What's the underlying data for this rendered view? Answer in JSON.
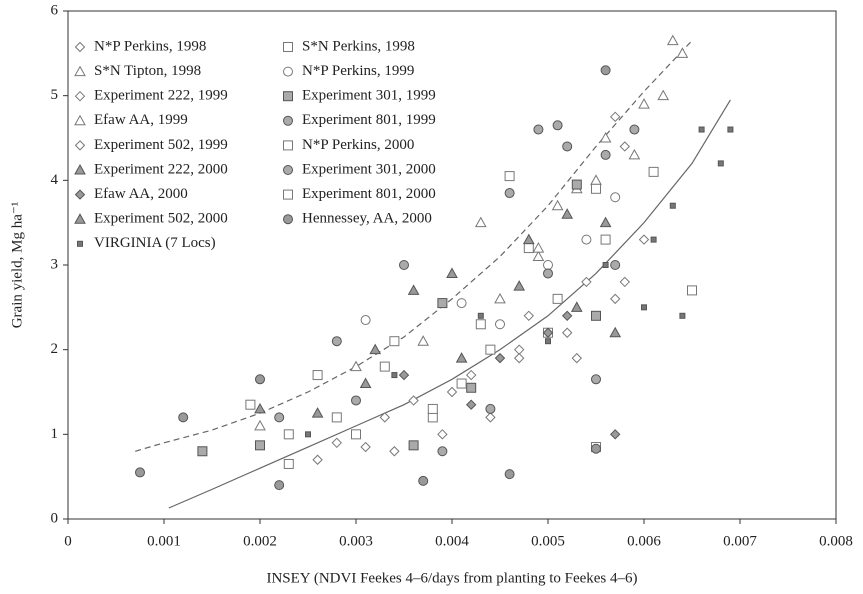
{
  "chart_data": {
    "type": "scatter",
    "x_label": "INSEY (NDVI Feekes 4–6/days from planting to Feekes 4–6)",
    "y_label": "Grain yield, Mg ha⁻¹",
    "xlim": [
      0,
      0.008
    ],
    "ylim": [
      0,
      6
    ],
    "xticks": [
      0,
      0.001,
      0.002,
      0.003,
      0.004,
      0.005,
      0.006,
      0.007,
      0.008
    ],
    "yticks": [
      0,
      1,
      2,
      3,
      4,
      5,
      6
    ],
    "legend": "upper left",
    "series": [
      {
        "name": "N*P Perkins, 1998",
        "marker": "diamond",
        "color": "#ffffff",
        "x": [
          0.0026,
          0.0031,
          0.0036,
          0.0042,
          0.0047,
          0.0052,
          0.0057,
          0.006
        ],
        "values": [
          0.7,
          0.85,
          1.4,
          1.7,
          2.0,
          2.2,
          2.6,
          3.3
        ]
      },
      {
        "name": "S*N Perkins, 1998",
        "marker": "square",
        "color": "#ffffff",
        "x": [
          0.0019,
          0.0023,
          0.0028,
          0.0033,
          0.0038,
          0.0044,
          0.005,
          0.0056
        ],
        "values": [
          1.35,
          1.0,
          1.2,
          1.8,
          1.2,
          2.0,
          2.2,
          3.3
        ]
      },
      {
        "name": "S*N Tipton, 1998",
        "marker": "triangle",
        "color": "#ffffff",
        "x": [
          0.0043,
          0.0049,
          0.0053,
          0.0056,
          0.006,
          0.0063,
          0.0064,
          0.0062
        ],
        "values": [
          3.5,
          3.1,
          3.9,
          4.5,
          4.9,
          5.65,
          5.5,
          5.0
        ]
      },
      {
        "name": "N*P Perkins, 1999",
        "marker": "circle",
        "color": "#ffffff",
        "x": [
          0.0031,
          0.0041,
          0.0045,
          0.005,
          0.0054,
          0.0057
        ],
        "values": [
          2.35,
          2.55,
          2.3,
          3.0,
          3.3,
          3.8
        ]
      },
      {
        "name": "Experiment 222, 1999",
        "marker": "diamond",
        "color": "#ffffff",
        "x": [
          0.0028,
          0.0034,
          0.004,
          0.0044,
          0.0048,
          0.0053,
          0.0058
        ],
        "values": [
          0.9,
          0.8,
          1.5,
          1.2,
          2.4,
          1.9,
          2.8
        ]
      },
      {
        "name": "Experiment 301, 1999",
        "marker": "square",
        "color": "#aaaaaa",
        "x": [
          0.0014,
          0.002,
          0.0036,
          0.0039,
          0.0042,
          0.0053,
          0.0055
        ],
        "values": [
          0.8,
          0.87,
          0.87,
          2.55,
          1.55,
          3.95,
          2.4
        ]
      },
      {
        "name": "Efaw AA, 1999",
        "marker": "triangle",
        "color": "#ffffff",
        "x": [
          0.002,
          0.003,
          0.0037,
          0.0045,
          0.0049,
          0.0051,
          0.0055,
          0.0059
        ],
        "values": [
          1.1,
          1.8,
          2.1,
          2.6,
          3.2,
          3.7,
          4.0,
          4.3
        ]
      },
      {
        "name": "Experiment 801, 1999",
        "marker": "circle",
        "color": "#aaaaaa",
        "x": [
          0.0028,
          0.0035,
          0.0046,
          0.0049,
          0.0051,
          0.0052,
          0.0056,
          0.0059
        ],
        "values": [
          2.1,
          3.0,
          3.85,
          4.6,
          4.65,
          4.4,
          4.3,
          4.6
        ]
      },
      {
        "name": "Experiment 502, 1999",
        "marker": "diamond",
        "color": "#ffffff",
        "x": [
          0.0033,
          0.0039,
          0.0047,
          0.0054,
          0.0057,
          0.0058
        ],
        "values": [
          1.2,
          1.0,
          1.9,
          2.8,
          4.75,
          4.4
        ]
      },
      {
        "name": "N*P Perkins, 2000",
        "marker": "square",
        "color": "#ffffff",
        "x": [
          0.0026,
          0.0034,
          0.0041,
          0.0046,
          0.0048,
          0.0055,
          0.0061
        ],
        "values": [
          1.7,
          2.1,
          1.6,
          4.05,
          3.2,
          3.9,
          4.1
        ]
      },
      {
        "name": "Experiment 222, 2000",
        "marker": "triangle",
        "color": "#999999",
        "x": [
          0.002,
          0.0032,
          0.0036,
          0.0041,
          0.0048,
          0.0053,
          0.0057
        ],
        "values": [
          1.3,
          2.0,
          2.7,
          1.9,
          3.3,
          2.5,
          2.2
        ]
      },
      {
        "name": "Experiment 301, 2000",
        "marker": "circle",
        "color": "#aaaaaa",
        "x": [
          0.0022,
          0.003,
          0.0039,
          0.0044,
          0.005,
          0.0055,
          0.0057
        ],
        "values": [
          1.2,
          1.4,
          0.8,
          1.3,
          2.9,
          1.65,
          3.0
        ]
      },
      {
        "name": "Efaw AA, 2000",
        "marker": "diamond",
        "color": "#999999",
        "x": [
          0.0035,
          0.0042,
          0.0045,
          0.005,
          0.0052,
          0.0057
        ],
        "values": [
          1.7,
          1.35,
          1.9,
          2.2,
          2.4,
          1.0
        ]
      },
      {
        "name": "Experiment 801, 2000",
        "marker": "square",
        "color": "#ffffff",
        "x": [
          0.0023,
          0.003,
          0.0038,
          0.0043,
          0.0051,
          0.0055,
          0.0065
        ],
        "values": [
          0.65,
          1.0,
          1.3,
          2.3,
          2.6,
          0.85,
          2.7
        ]
      },
      {
        "name": "Experiment 502, 2000",
        "marker": "triangle",
        "color": "#999999",
        "x": [
          0.0026,
          0.0031,
          0.004,
          0.0047,
          0.0052,
          0.0056
        ],
        "values": [
          1.25,
          1.6,
          2.9,
          2.75,
          3.6,
          3.5
        ]
      },
      {
        "name": "Hennessey, AA, 2000",
        "marker": "circle",
        "color": "#999999",
        "x": [
          0.00075,
          0.0012,
          0.002,
          0.0022,
          0.0037,
          0.0046,
          0.0055,
          0.0056
        ],
        "values": [
          0.55,
          1.2,
          1.65,
          0.4,
          0.45,
          0.53,
          0.83,
          5.3
        ]
      },
      {
        "name": "VIRGINIA (7 Locs)",
        "marker": "small-square",
        "color": "#777777",
        "x": [
          0.0025,
          0.0034,
          0.0043,
          0.005,
          0.0056,
          0.006,
          0.0063,
          0.0066,
          0.0068,
          0.0069,
          0.0064,
          0.0061
        ],
        "values": [
          1.0,
          1.7,
          2.4,
          2.1,
          3.0,
          2.5,
          3.7,
          4.6,
          4.2,
          4.6,
          2.4,
          3.3
        ]
      }
    ],
    "curves": [
      {
        "style": "dashed",
        "color": "#666666",
        "x": [
          0.0007,
          0.001,
          0.0015,
          0.002,
          0.0025,
          0.003,
          0.0035,
          0.004,
          0.0045,
          0.005,
          0.0055,
          0.006,
          0.0065
        ],
        "values": [
          0.8,
          0.9,
          1.05,
          1.25,
          1.5,
          1.8,
          2.15,
          2.6,
          3.1,
          3.7,
          4.4,
          5.05,
          5.65
        ]
      },
      {
        "style": "solid",
        "color": "#666666",
        "x": [
          0.00105,
          0.0015,
          0.002,
          0.0025,
          0.003,
          0.0035,
          0.004,
          0.0045,
          0.005,
          0.0055,
          0.006,
          0.0065,
          0.0069
        ],
        "values": [
          0.13,
          0.35,
          0.6,
          0.85,
          1.1,
          1.35,
          1.65,
          2.0,
          2.4,
          2.9,
          3.5,
          4.2,
          4.95
        ]
      }
    ]
  }
}
